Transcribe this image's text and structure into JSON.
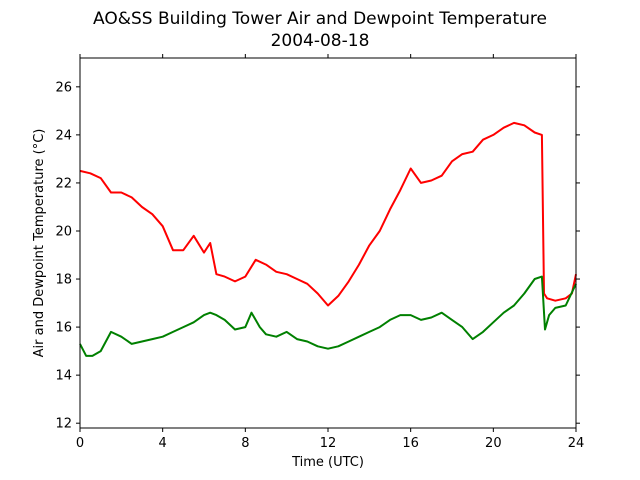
{
  "chart_data": {
    "type": "line",
    "title": "AO&SS Building Tower Air and Dewpoint Temperature",
    "subtitle": "2004-08-18",
    "xlabel": "Time (UTC)",
    "ylabel": "Air and Dewpoint Temperature (°C)",
    "xlim": [
      0,
      24
    ],
    "ylim": [
      11.8,
      27.2
    ],
    "xticks": [
      0,
      4,
      8,
      12,
      16,
      20,
      24
    ],
    "yticks": [
      12,
      14,
      16,
      18,
      20,
      22,
      24,
      26
    ],
    "grid": false,
    "series": [
      {
        "color": "#ff0000",
        "x": [
          0,
          0.5,
          1,
          1.5,
          2,
          2.5,
          3,
          3.5,
          4,
          4.5,
          5,
          5.5,
          6,
          6.3,
          6.6,
          7,
          7.5,
          8,
          8.5,
          9,
          9.5,
          10,
          10.5,
          11,
          11.5,
          12,
          12.5,
          13,
          13.5,
          14,
          14.5,
          15,
          15.5,
          16,
          16.5,
          17,
          17.5,
          18,
          18.5,
          19,
          19.5,
          20,
          20.5,
          21,
          21.5,
          22,
          22.35,
          22.45,
          22.6,
          23,
          23.5,
          23.8,
          24
        ],
        "values": [
          22.5,
          22.4,
          22.2,
          21.6,
          21.6,
          21.4,
          21.0,
          20.7,
          20.2,
          19.2,
          19.2,
          19.8,
          19.1,
          19.5,
          18.2,
          18.1,
          17.9,
          18.1,
          18.8,
          18.6,
          18.3,
          18.2,
          18.0,
          17.8,
          17.4,
          16.9,
          17.3,
          17.9,
          18.6,
          19.4,
          20.0,
          20.9,
          21.7,
          22.6,
          22.0,
          22.1,
          22.3,
          22.9,
          23.2,
          23.3,
          23.8,
          24.0,
          24.3,
          24.5,
          24.4,
          24.1,
          24.0,
          17.4,
          17.2,
          17.1,
          17.2,
          17.4,
          18.2
        ]
      },
      {
        "color": "#008000",
        "x": [
          0,
          0.3,
          0.6,
          1,
          1.5,
          2,
          2.5,
          3,
          3.5,
          4,
          4.5,
          5,
          5.5,
          6,
          6.3,
          6.6,
          7,
          7.5,
          8,
          8.3,
          8.7,
          9,
          9.5,
          10,
          10.5,
          11,
          11.5,
          12,
          12.5,
          13,
          13.5,
          14,
          14.5,
          15,
          15.5,
          16,
          16.5,
          17,
          17.5,
          18,
          18.5,
          19,
          19.5,
          20,
          20.5,
          21,
          21.5,
          22,
          22.35,
          22.5,
          22.7,
          23,
          23.5,
          24
        ],
        "values": [
          15.3,
          14.8,
          14.8,
          15.0,
          15.8,
          15.6,
          15.3,
          15.4,
          15.5,
          15.6,
          15.8,
          16.0,
          16.2,
          16.5,
          16.6,
          16.5,
          16.3,
          15.9,
          16.0,
          16.6,
          16.0,
          15.7,
          15.6,
          15.8,
          15.5,
          15.4,
          15.2,
          15.1,
          15.2,
          15.4,
          15.6,
          15.8,
          16.0,
          16.3,
          16.5,
          16.5,
          16.3,
          16.4,
          16.6,
          16.3,
          16.0,
          15.5,
          15.8,
          16.2,
          16.6,
          16.9,
          17.4,
          18.0,
          18.1,
          15.9,
          16.5,
          16.8,
          16.9,
          17.8
        ]
      }
    ]
  }
}
